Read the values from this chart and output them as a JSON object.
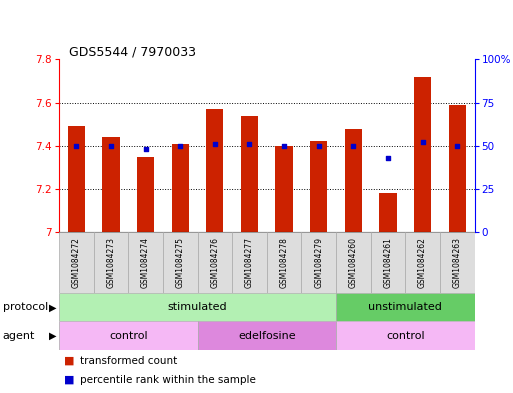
{
  "title": "GDS5544 / 7970033",
  "samples": [
    "GSM1084272",
    "GSM1084273",
    "GSM1084274",
    "GSM1084275",
    "GSM1084276",
    "GSM1084277",
    "GSM1084278",
    "GSM1084279",
    "GSM1084260",
    "GSM1084261",
    "GSM1084262",
    "GSM1084263"
  ],
  "bar_values": [
    7.49,
    7.44,
    7.35,
    7.41,
    7.57,
    7.54,
    7.4,
    7.42,
    7.48,
    7.18,
    7.72,
    7.59
  ],
  "percentile_values": [
    50,
    50,
    48,
    50,
    51,
    51,
    50,
    50,
    50,
    43,
    52,
    50
  ],
  "bar_color": "#cc2200",
  "percentile_color": "#0000cc",
  "ylim_left": [
    7.0,
    7.8
  ],
  "ylim_right": [
    0,
    100
  ],
  "yticks_left": [
    7.0,
    7.2,
    7.4,
    7.6,
    7.8
  ],
  "ytick_labels_left": [
    "7",
    "7.2",
    "7.4",
    "7.6",
    "7.8"
  ],
  "yticks_right": [
    0,
    25,
    50,
    75,
    100
  ],
  "ytick_labels_right": [
    "0",
    "25",
    "50",
    "75",
    "100%"
  ],
  "grid_values": [
    7.2,
    7.4,
    7.6
  ],
  "protocol_groups": [
    {
      "label": "stimulated",
      "start": 0,
      "end": 7,
      "color": "#b3f0b3"
    },
    {
      "label": "unstimulated",
      "start": 8,
      "end": 11,
      "color": "#66cc66"
    }
  ],
  "agent_groups": [
    {
      "label": "control",
      "start": 0,
      "end": 3,
      "color": "#f5b8f5"
    },
    {
      "label": "edelfosine",
      "start": 4,
      "end": 7,
      "color": "#dd88dd"
    },
    {
      "label": "control",
      "start": 8,
      "end": 11,
      "color": "#f5b8f5"
    }
  ],
  "legend_bar_label": "transformed count",
  "legend_pct_label": "percentile rank within the sample",
  "protocol_label": "protocol",
  "agent_label": "agent",
  "bar_width": 0.5,
  "background_color": "#ffffff",
  "sample_bg_color": "#dddddd",
  "sample_border_color": "#aaaaaa"
}
